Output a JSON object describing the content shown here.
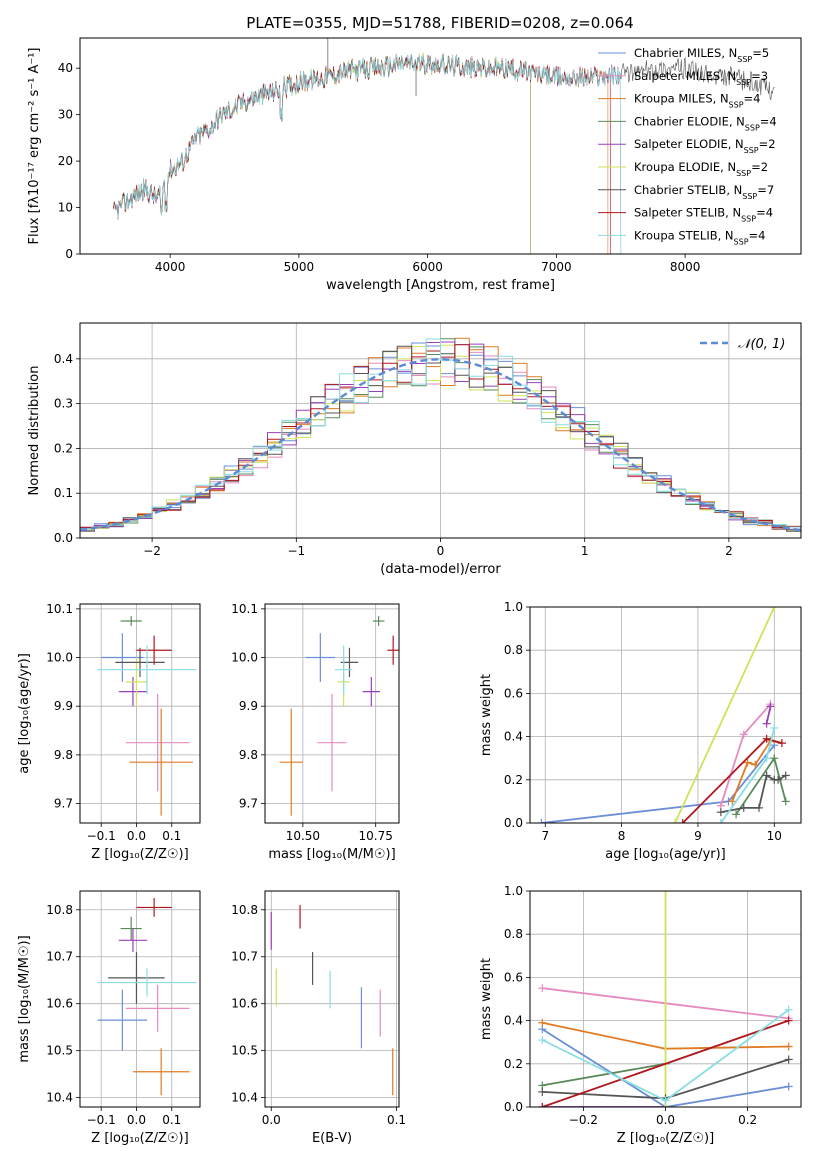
{
  "title": "PLATE=0355, MJD=51788, FIBERID=0208, z=0.064",
  "colors": {
    "Chabrier MILES": "#6a8fd8",
    "Salpeter MILES": "#e58bbf",
    "Kroupa MILES": "#e07b25",
    "Chabrier ELODIE": "#5a8a5a",
    "Salpeter ELODIE": "#9b40b8",
    "Kroupa ELODIE": "#cfe35a",
    "Chabrier STELIB": "#555555",
    "Salpeter STELIB": "#b01820",
    "Kroupa STELIB": "#88dde3",
    "normal": "#5b8ad6"
  },
  "chart_data": [
    {
      "id": "spectrum",
      "type": "line",
      "xlabel": "wavelength [Angstrom, rest frame]",
      "ylabel": "Flux [fλ10⁻¹⁷ erg cm⁻² s⁻¹ A⁻¹]",
      "xlim": [
        3300,
        8900
      ],
      "ylim": [
        0,
        46.5
      ],
      "xticks": [
        4000,
        5000,
        6000,
        7000,
        8000
      ],
      "yticks": [
        0,
        10,
        20,
        30,
        40
      ],
      "grid": false,
      "legend_position": "right",
      "continuum": {
        "x": [
          3560,
          3700,
          3800,
          3900,
          4000,
          4100,
          4200,
          4300,
          4400,
          4600,
          4800,
          5000,
          5200,
          5400,
          5600,
          5800,
          6000,
          6200,
          6400,
          6600,
          6800,
          6900,
          7000,
          7100,
          7200,
          7400,
          7600,
          7800,
          8000,
          8200,
          8400,
          8700
        ],
        "y": [
          9,
          12,
          14,
          12,
          18,
          20,
          25,
          27,
          30,
          33,
          35,
          37,
          38,
          39.5,
          40,
          41,
          41,
          40.5,
          40,
          40,
          39,
          38.5,
          38,
          38,
          38,
          38.5,
          39,
          40,
          40,
          38,
          38,
          35
        ]
      },
      "series": [
        {
          "name": "Chabrier MILES",
          "nssp": "5",
          "xmax": 7500
        },
        {
          "name": "Salpeter MILES",
          "nssp": "3",
          "xmax": 7500
        },
        {
          "name": "Kroupa MILES",
          "nssp": "4",
          "xmax": 7400
        },
        {
          "name": "Chabrier ELODIE",
          "nssp": "4",
          "xmax": 6800
        },
        {
          "name": "Salpeter ELODIE",
          "nssp": "2",
          "xmax": 6800
        },
        {
          "name": "Kroupa ELODIE",
          "nssp": "2",
          "xmax": 6800
        },
        {
          "name": "Chabrier STELIB",
          "nssp": "7",
          "xmax": 8900
        },
        {
          "name": "Salpeter STELIB",
          "nssp": "4",
          "xmax": 7420
        },
        {
          "name": "Kroupa STELIB",
          "nssp": "4",
          "xmax": 7500
        }
      ]
    },
    {
      "id": "residuals",
      "type": "area",
      "xlabel": "(data-model)/error",
      "ylabel": "Normed distribution",
      "xlim": [
        -2.5,
        2.5
      ],
      "ylim": [
        0,
        0.48
      ],
      "xticks": [
        -2,
        -1,
        0,
        1,
        2
      ],
      "yticks": [
        0,
        0.1,
        0.2,
        0.3,
        0.4
      ],
      "grid": true,
      "legend_position": "upper right",
      "legend_label": "𝒩(0, 1)",
      "bins": 50,
      "series": [
        {
          "name": "Chabrier MILES",
          "seed": 1
        },
        {
          "name": "Salpeter MILES",
          "seed": 2
        },
        {
          "name": "Kroupa MILES",
          "seed": 3
        },
        {
          "name": "Chabrier ELODIE",
          "seed": 4
        },
        {
          "name": "Salpeter ELODIE",
          "seed": 5
        },
        {
          "name": "Kroupa ELODIE",
          "seed": 6
        },
        {
          "name": "Chabrier STELIB",
          "seed": 7
        },
        {
          "name": "Salpeter STELIB",
          "seed": 8
        },
        {
          "name": "Kroupa STELIB",
          "seed": 9
        }
      ]
    },
    {
      "id": "age-vs-Z",
      "type": "scatter",
      "xlabel": "Z [log₁₀(Z/Z☉)]",
      "ylabel": "age  [log₁₀(age/yr)]",
      "xlim": [
        -0.16,
        0.18
      ],
      "ylim": [
        9.66,
        10.11
      ],
      "xticks": [
        -0.1,
        0.0,
        0.1
      ],
      "yticks": [
        9.7,
        9.8,
        9.9,
        10.0,
        10.1
      ],
      "grid": true,
      "points": [
        {
          "name": "Chabrier MILES",
          "x": -0.04,
          "y": 10.0,
          "xerr": 0.06,
          "yerr": 0.05
        },
        {
          "name": "Salpeter MILES",
          "x": 0.06,
          "y": 9.825,
          "xerr": 0.09,
          "yerr": 0.1
        },
        {
          "name": "Kroupa MILES",
          "x": 0.07,
          "y": 9.785,
          "xerr": 0.09,
          "yerr": 0.11
        },
        {
          "name": "Chabrier ELODIE",
          "x": -0.015,
          "y": 10.075,
          "xerr": 0.03,
          "yerr": 0.01
        },
        {
          "name": "Salpeter ELODIE",
          "x": -0.01,
          "y": 9.93,
          "xerr": 0.04,
          "yerr": 0.03
        },
        {
          "name": "Kroupa ELODIE",
          "x": 0.0,
          "y": 9.95,
          "xerr": 0.03,
          "yerr": 0.05
        },
        {
          "name": "Chabrier STELIB",
          "x": 0.01,
          "y": 9.99,
          "xerr": 0.07,
          "yerr": 0.03
        },
        {
          "name": "Salpeter STELIB",
          "x": 0.05,
          "y": 10.015,
          "xerr": 0.05,
          "yerr": 0.03
        },
        {
          "name": "Kroupa STELIB",
          "x": 0.03,
          "y": 9.975,
          "xerr": 0.14,
          "yerr": 0.05
        }
      ]
    },
    {
      "id": "age-vs-mass",
      "type": "scatter",
      "xlabel": "mass [log₁₀(M/M☉)]",
      "ylabel": "",
      "xlim": [
        10.37,
        10.83
      ],
      "ylim": [
        9.66,
        10.11
      ],
      "xticks": [
        10.5,
        10.75
      ],
      "yticks": [
        9.7,
        9.8,
        9.9,
        10.0,
        10.1
      ],
      "grid": true,
      "points": [
        {
          "name": "Chabrier MILES",
          "x": 10.56,
          "y": 10.0,
          "xerr": 0.05,
          "yerr": 0.05
        },
        {
          "name": "Salpeter MILES",
          "x": 10.6,
          "y": 9.825,
          "xerr": 0.05,
          "yerr": 0.1
        },
        {
          "name": "Kroupa MILES",
          "x": 10.46,
          "y": 9.785,
          "xerr": 0.04,
          "yerr": 0.11
        },
        {
          "name": "Chabrier ELODIE",
          "x": 10.76,
          "y": 10.075,
          "xerr": 0.02,
          "yerr": 0.01
        },
        {
          "name": "Salpeter ELODIE",
          "x": 10.735,
          "y": 9.93,
          "xerr": 0.03,
          "yerr": 0.03
        },
        {
          "name": "Kroupa ELODIE",
          "x": 10.64,
          "y": 9.95,
          "xerr": 0.02,
          "yerr": 0.05
        },
        {
          "name": "Chabrier STELIB",
          "x": 10.66,
          "y": 9.99,
          "xerr": 0.03,
          "yerr": 0.03
        },
        {
          "name": "Salpeter STELIB",
          "x": 10.81,
          "y": 10.015,
          "xerr": 0.02,
          "yerr": 0.03
        },
        {
          "name": "Kroupa STELIB",
          "x": 10.64,
          "y": 9.975,
          "xerr": 0.03,
          "yerr": 0.05
        }
      ]
    },
    {
      "id": "weight-vs-age",
      "type": "line",
      "xlabel": "age  [log₁₀(age/yr)]",
      "ylabel": "mass weight",
      "xlim": [
        6.8,
        10.35
      ],
      "ylim": [
        0,
        1.0
      ],
      "xticks": [
        7,
        8,
        9,
        10
      ],
      "yticks": [
        0,
        0.2,
        0.4,
        0.6,
        0.8,
        1.0
      ],
      "grid": true,
      "series": [
        {
          "name": "Chabrier MILES",
          "x": [
            6.95,
            9.4,
            10.0
          ],
          "y": [
            0.0,
            0.1,
            0.36
          ]
        },
        {
          "name": "Salpeter MILES",
          "x": [
            9.3,
            9.6,
            9.95
          ],
          "y": [
            0.08,
            0.41,
            0.55
          ]
        },
        {
          "name": "Kroupa MILES",
          "x": [
            9.45,
            9.65,
            9.75,
            9.95,
            10.1
          ],
          "y": [
            0.1,
            0.28,
            0.27,
            0.38,
            0.37
          ]
        },
        {
          "name": "Chabrier ELODIE",
          "x": [
            9.5,
            10.0,
            10.15
          ],
          "y": [
            0.04,
            0.3,
            0.1
          ]
        },
        {
          "name": "Salpeter ELODIE",
          "x": [
            9.9,
            9.95
          ],
          "y": [
            0.46,
            0.54
          ]
        },
        {
          "name": "Kroupa ELODIE",
          "x": [
            8.7,
            10.0
          ],
          "y": [
            0.0,
            1.0
          ]
        },
        {
          "name": "Chabrier STELIB",
          "x": [
            9.3,
            9.6,
            9.8,
            9.9,
            10.0,
            10.05,
            10.15
          ],
          "y": [
            0.05,
            0.07,
            0.07,
            0.22,
            0.2,
            0.2,
            0.22
          ]
        },
        {
          "name": "Salpeter STELIB",
          "x": [
            8.8,
            9.9,
            10.1
          ],
          "y": [
            0.0,
            0.39,
            0.37
          ]
        },
        {
          "name": "Kroupa STELIB",
          "x": [
            9.3,
            9.9,
            10.0
          ],
          "y": [
            0.0,
            0.3,
            0.44
          ]
        }
      ]
    },
    {
      "id": "mass-vs-Z",
      "type": "scatter",
      "xlabel": "Z [log₁₀(Z/Z☉)]",
      "ylabel": "mass [log₁₀(M/M☉)]",
      "xlim": [
        -0.16,
        0.18
      ],
      "ylim": [
        10.38,
        10.84
      ],
      "xticks": [
        -0.1,
        0.0,
        0.1
      ],
      "yticks": [
        10.4,
        10.5,
        10.6,
        10.7,
        10.8
      ],
      "grid": true,
      "points": [
        {
          "name": "Chabrier MILES",
          "x": -0.04,
          "y": 10.565,
          "xerr": 0.07,
          "yerr": 0.065
        },
        {
          "name": "Salpeter MILES",
          "x": 0.06,
          "y": 10.59,
          "xerr": 0.09,
          "yerr": 0.05
        },
        {
          "name": "Kroupa MILES",
          "x": 0.07,
          "y": 10.455,
          "xerr": 0.08,
          "yerr": 0.05
        },
        {
          "name": "Chabrier ELODIE",
          "x": -0.015,
          "y": 10.76,
          "xerr": 0.03,
          "yerr": 0.025
        },
        {
          "name": "Salpeter ELODIE",
          "x": -0.01,
          "y": 10.735,
          "xerr": 0.04,
          "yerr": 0.025
        },
        {
          "name": "Kroupa ELODIE",
          "x": 0.0,
          "y": 10.645,
          "xerr": 0.05,
          "yerr": 0.03
        },
        {
          "name": "Chabrier STELIB",
          "x": 0.0,
          "y": 10.655,
          "xerr": 0.08,
          "yerr": 0.055
        },
        {
          "name": "Salpeter STELIB",
          "x": 0.05,
          "y": 10.805,
          "xerr": 0.05,
          "yerr": 0.02
        },
        {
          "name": "Kroupa STELIB",
          "x": 0.03,
          "y": 10.645,
          "xerr": 0.14,
          "yerr": 0.03
        }
      ]
    },
    {
      "id": "mass-vs-ebv",
      "type": "scatter",
      "xlabel": "E(B-V)",
      "ylabel": "",
      "xlim": [
        -0.005,
        0.102
      ],
      "ylim": [
        10.38,
        10.84
      ],
      "xticks": [
        0.0,
        0.1
      ],
      "yticks": [
        10.4,
        10.5,
        10.6,
        10.7,
        10.8
      ],
      "grid": true,
      "points": [
        {
          "name": "Chabrier MILES",
          "x": 0.072,
          "y": 10.57,
          "xerr": 0,
          "yerr": 0.065
        },
        {
          "name": "Salpeter MILES",
          "x": 0.087,
          "y": 10.58,
          "xerr": 0,
          "yerr": 0.05
        },
        {
          "name": "Kroupa MILES",
          "x": 0.097,
          "y": 10.455,
          "xerr": 0,
          "yerr": 0.05
        },
        {
          "name": "Salpeter ELODIE",
          "x": 0.0,
          "y": 10.755,
          "xerr": 0,
          "yerr": 0.04
        },
        {
          "name": "Kroupa ELODIE",
          "x": 0.004,
          "y": 10.635,
          "xerr": 0,
          "yerr": 0.04
        },
        {
          "name": "Chabrier STELIB",
          "x": 0.033,
          "y": 10.675,
          "xerr": 0,
          "yerr": 0.035
        },
        {
          "name": "Salpeter STELIB",
          "x": 0.023,
          "y": 10.785,
          "xerr": 0,
          "yerr": 0.025
        },
        {
          "name": "Kroupa STELIB",
          "x": 0.047,
          "y": 10.63,
          "xerr": 0,
          "yerr": 0.04
        }
      ]
    },
    {
      "id": "weight-vs-Z",
      "type": "line",
      "xlabel": "Z [log₁₀(Z/Z☉)]",
      "ylabel": "mass weight",
      "xlim": [
        -0.33,
        0.33
      ],
      "ylim": [
        0,
        1.0
      ],
      "xticks": [
        -0.2,
        0.0,
        0.2
      ],
      "yticks": [
        0,
        0.2,
        0.4,
        0.6,
        0.8,
        1.0
      ],
      "grid": true,
      "series": [
        {
          "name": "Chabrier MILES",
          "x": [
            -0.3,
            0.0,
            0.3
          ],
          "y": [
            0.36,
            0.0,
            0.095
          ]
        },
        {
          "name": "Salpeter MILES",
          "x": [
            -0.3,
            0.0,
            0.3
          ],
          "y": [
            0.55,
            0.48,
            0.41
          ]
        },
        {
          "name": "Kroupa MILES",
          "x": [
            -0.3,
            0.0,
            0.3
          ],
          "y": [
            0.39,
            0.27,
            0.28
          ]
        },
        {
          "name": "Chabrier ELODIE",
          "x": [
            -0.3,
            0.0
          ],
          "y": [
            0.1,
            0.2
          ]
        },
        {
          "name": "Salpeter ELODIE",
          "x": [
            -0.3,
            0.0
          ],
          "y": [
            0.0,
            0.0
          ]
        },
        {
          "name": "Kroupa ELODIE",
          "x": [
            0.0,
            0.0
          ],
          "y": [
            0.0,
            1.0
          ]
        },
        {
          "name": "Chabrier STELIB",
          "x": [
            -0.3,
            0.0,
            0.3
          ],
          "y": [
            0.07,
            0.04,
            0.22
          ]
        },
        {
          "name": "Salpeter STELIB",
          "x": [
            -0.3,
            0.3
          ],
          "y": [
            0.0,
            0.4
          ]
        },
        {
          "name": "Kroupa STELIB",
          "x": [
            -0.3,
            0.0,
            0.3
          ],
          "y": [
            0.31,
            0.03,
            0.45
          ]
        }
      ]
    }
  ],
  "panel_boxes": {
    "spectrum": [
      80,
      38,
      801,
      254
    ],
    "residuals": [
      80,
      323,
      801,
      538
    ],
    "age-vs-Z": [
      80,
      604,
      200,
      823
    ],
    "age-vs-mass": [
      265,
      604,
      399,
      823
    ],
    "weight-vs-age": [
      530,
      607,
      801,
      823
    ],
    "mass-vs-Z": [
      80,
      891,
      200,
      1107
    ],
    "mass-vs-ebv": [
      265,
      891,
      399,
      1107
    ],
    "weight-vs-Z": [
      530,
      891,
      801,
      1107
    ]
  }
}
